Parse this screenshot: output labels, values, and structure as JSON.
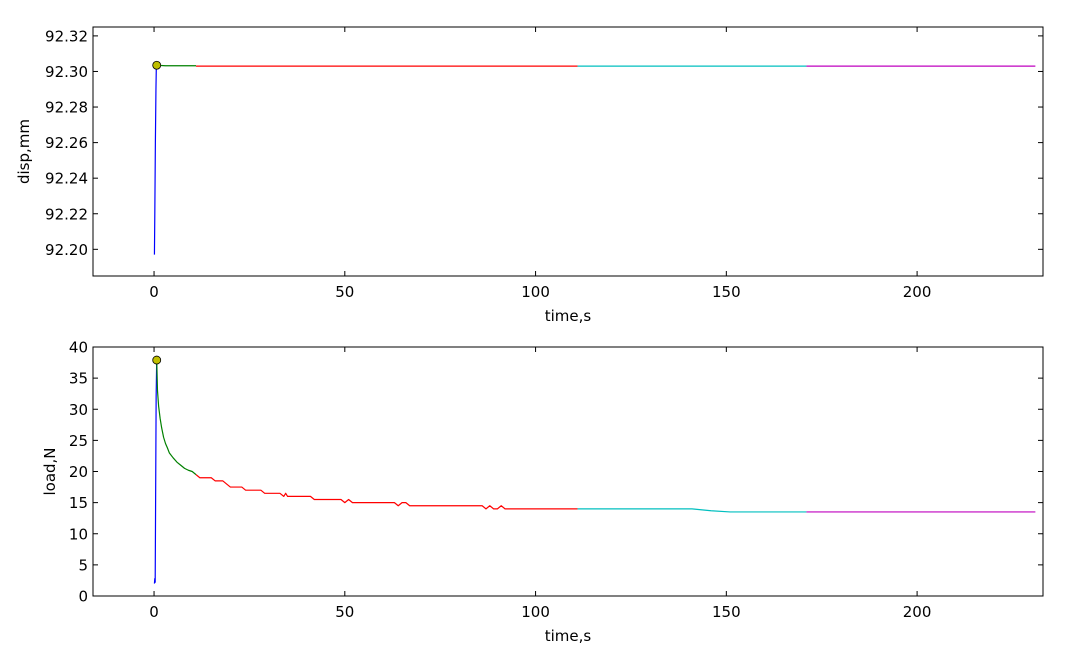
{
  "chart_data": [
    {
      "type": "line",
      "xlabel": "time,s",
      "ylabel": "disp,mm",
      "xlim": [
        -16,
        233
      ],
      "ylim": [
        92.185,
        92.325
      ],
      "xticks": [
        0,
        50,
        100,
        150,
        200
      ],
      "xtick_labels": [
        "0",
        "50",
        "100",
        "150",
        "200"
      ],
      "yticks": [
        92.2,
        92.22,
        92.24,
        92.26,
        92.28,
        92.3,
        92.32
      ],
      "ytick_labels": [
        "92.20",
        "92.22",
        "92.24",
        "92.26",
        "92.28",
        "92.30",
        "92.32"
      ],
      "grid": false,
      "series": [
        {
          "color": "#0000ff",
          "points": [
            [
              0.1,
              92.197
            ],
            [
              0.2,
              92.22
            ],
            [
              0.35,
              92.26
            ],
            [
              0.5,
              92.29
            ],
            [
              0.6,
              92.303
            ],
            [
              0.7,
              92.3035
            ]
          ]
        },
        {
          "color": "#008000",
          "points": [
            [
              0.7,
              92.3035
            ],
            [
              3,
              92.3032
            ],
            [
              6,
              92.3032
            ],
            [
              11,
              92.3032
            ]
          ]
        },
        {
          "color": "#ff0000",
          "points": [
            [
              11,
              92.303
            ],
            [
              50,
              92.303
            ],
            [
              111,
              92.303
            ]
          ]
        },
        {
          "color": "#00bfbf",
          "points": [
            [
              111,
              92.303
            ],
            [
              140,
              92.303
            ],
            [
              171,
              92.303
            ]
          ]
        },
        {
          "color": "#bf00bf",
          "points": [
            [
              171,
              92.303
            ],
            [
              200,
              92.303
            ],
            [
              231,
              92.303
            ]
          ]
        }
      ],
      "markers": [
        {
          "x": 0.7,
          "y": 92.3035,
          "color": "#bfbf00"
        }
      ]
    },
    {
      "type": "line",
      "xlabel": "time,s",
      "ylabel": "load,N",
      "xlim": [
        -16,
        233
      ],
      "ylim": [
        0,
        40
      ],
      "xticks": [
        0,
        50,
        100,
        150,
        200
      ],
      "xtick_labels": [
        "0",
        "50",
        "100",
        "150",
        "200"
      ],
      "yticks": [
        0,
        5,
        10,
        15,
        20,
        25,
        30,
        35,
        40
      ],
      "ytick_labels": [
        "0",
        "5",
        "10",
        "15",
        "20",
        "25",
        "30",
        "35",
        "40"
      ],
      "grid": false,
      "series": [
        {
          "color": "#0000ff",
          "points": [
            [
              0.1,
              2.0
            ],
            [
              0.2,
              2.8
            ],
            [
              0.3,
              2.2
            ],
            [
              0.35,
              8
            ],
            [
              0.45,
              20
            ],
            [
              0.55,
              32
            ],
            [
              0.7,
              37.9
            ]
          ]
        },
        {
          "color": "#008000",
          "points": [
            [
              0.7,
              37.9
            ],
            [
              0.9,
              33
            ],
            [
              1.2,
              30.5
            ],
            [
              1.6,
              28.5
            ],
            [
              2,
              27
            ],
            [
              2.5,
              25.5
            ],
            [
              3,
              24.5
            ],
            [
              3.5,
              23.8
            ],
            [
              4,
              23
            ],
            [
              5,
              22.2
            ],
            [
              6,
              21.5
            ],
            [
              7,
              21
            ],
            [
              8,
              20.5
            ],
            [
              9,
              20.2
            ],
            [
              10,
              20
            ],
            [
              11,
              19.5
            ]
          ]
        },
        {
          "color": "#ff0000",
          "points": [
            [
              11,
              19.5
            ],
            [
              12,
              19
            ],
            [
              15,
              19
            ],
            [
              16,
              18.5
            ],
            [
              18,
              18.5
            ],
            [
              19,
              18
            ],
            [
              20,
              17.5
            ],
            [
              23,
              17.5
            ],
            [
              24,
              17
            ],
            [
              28,
              17
            ],
            [
              29,
              16.5
            ],
            [
              33,
              16.5
            ],
            [
              34,
              16
            ],
            [
              34.5,
              16.5
            ],
            [
              35,
              16
            ],
            [
              41,
              16
            ],
            [
              42,
              15.5
            ],
            [
              49,
              15.5
            ],
            [
              50,
              15
            ],
            [
              51,
              15.5
            ],
            [
              52,
              15
            ],
            [
              63,
              15
            ],
            [
              64,
              14.5
            ],
            [
              65,
              15
            ],
            [
              66,
              15
            ],
            [
              67,
              14.5
            ],
            [
              86,
              14.5
            ],
            [
              87,
              14
            ],
            [
              88,
              14.5
            ],
            [
              89,
              14
            ],
            [
              90,
              14
            ],
            [
              91,
              14.5
            ],
            [
              92,
              14
            ],
            [
              111,
              14
            ]
          ]
        },
        {
          "color": "#00bfbf",
          "points": [
            [
              111,
              14
            ],
            [
              141,
              14
            ],
            [
              146,
              13.7
            ],
            [
              151,
              13.5
            ],
            [
              171,
              13.5
            ]
          ]
        },
        {
          "color": "#bf00bf",
          "points": [
            [
              171,
              13.5
            ],
            [
              200,
              13.5
            ],
            [
              231,
              13.5
            ]
          ]
        }
      ],
      "markers": [
        {
          "x": 0.7,
          "y": 37.9,
          "color": "#bfbf00"
        }
      ]
    }
  ]
}
